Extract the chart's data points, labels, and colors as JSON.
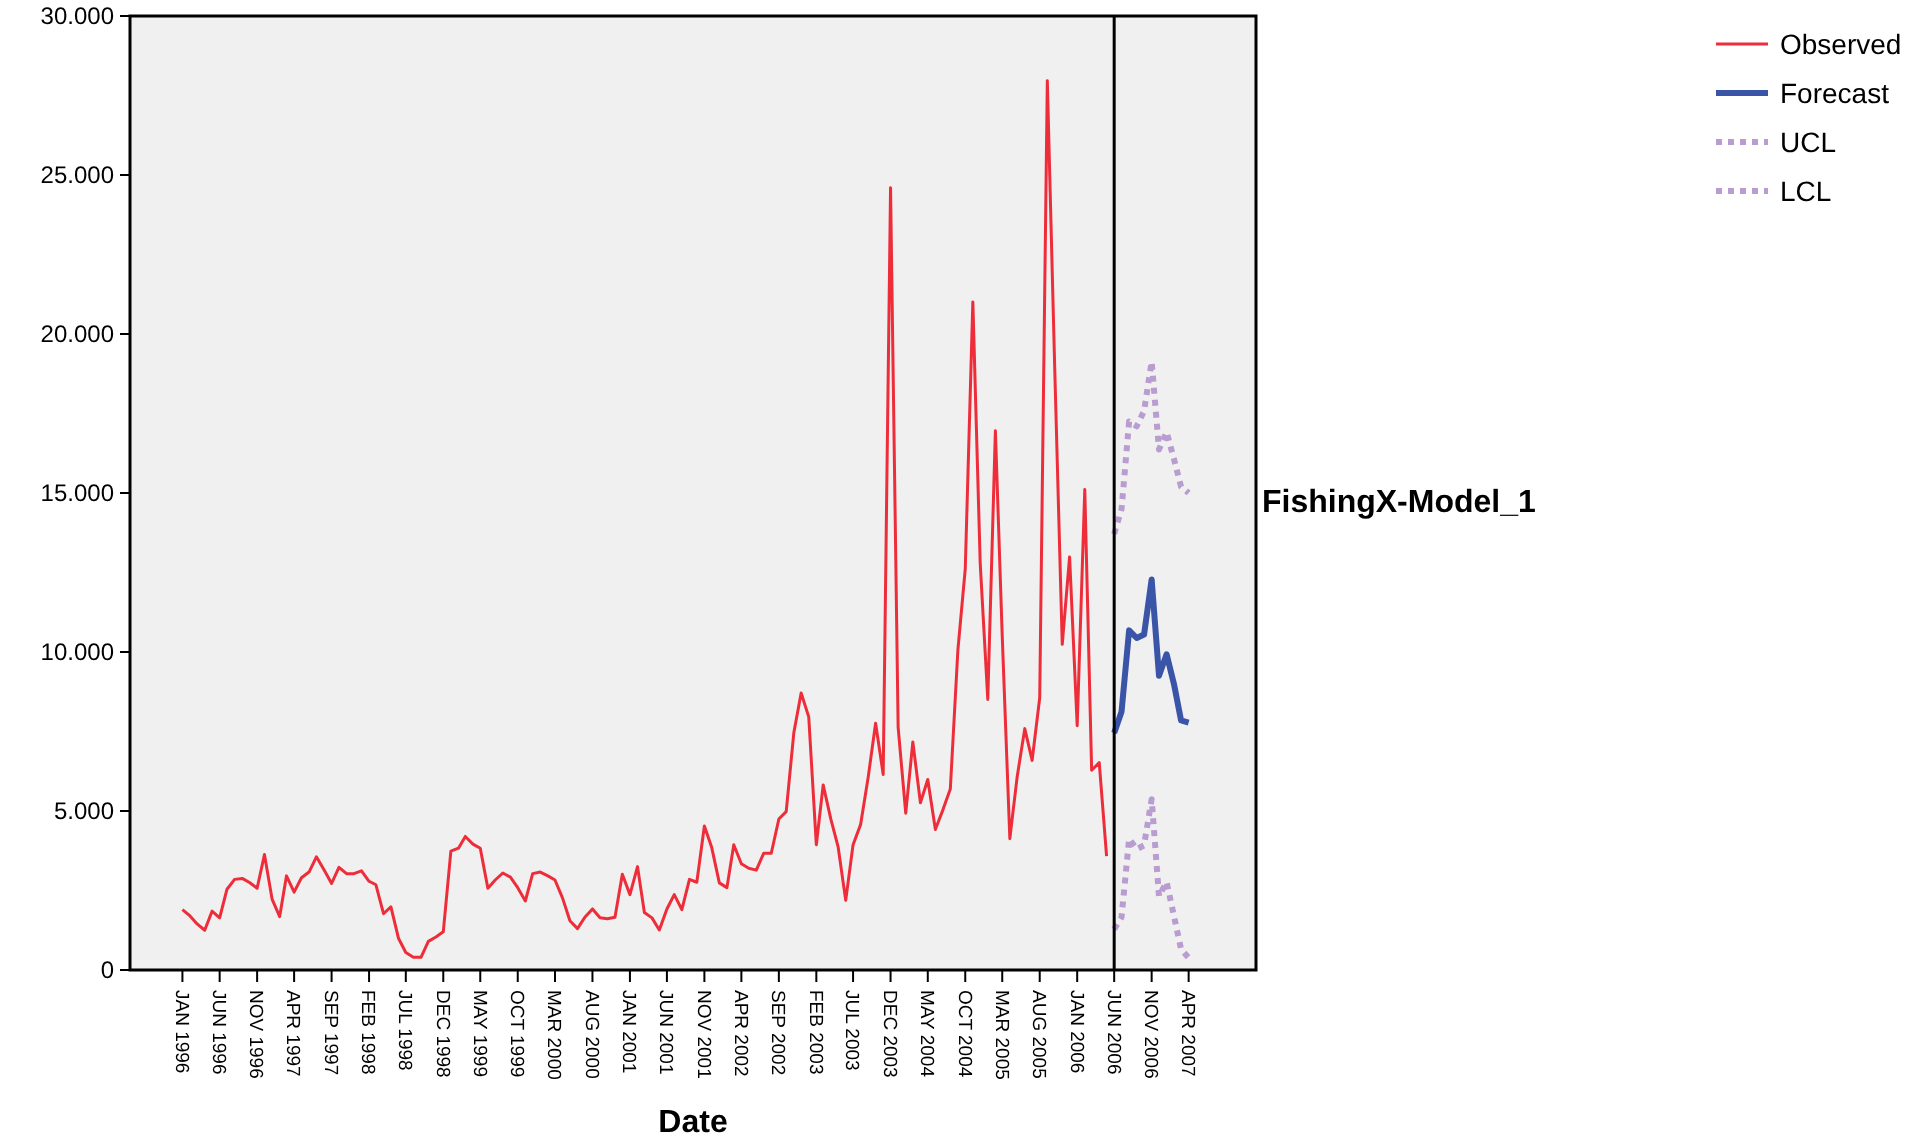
{
  "chart_data": {
    "type": "line",
    "xlabel": "Date",
    "annotations": [
      "FishingX-Model_1"
    ],
    "xlim": [
      "1995-06",
      "2008-01"
    ],
    "xticks": [
      {
        "value": "1996-01",
        "label": "JAN 1996"
      },
      {
        "value": "1996-06",
        "label": "JUN 1996"
      },
      {
        "value": "1996-11",
        "label": "NOV 1996"
      },
      {
        "value": "1997-04",
        "label": "APR 1997"
      },
      {
        "value": "1997-09",
        "label": "SEP 1997"
      },
      {
        "value": "1998-02",
        "label": "FEB 1998"
      },
      {
        "value": "1998-07",
        "label": "JUL 1998"
      },
      {
        "value": "1998-12",
        "label": "DEC 1998"
      },
      {
        "value": "1999-05",
        "label": "MAY 1999"
      },
      {
        "value": "1999-10",
        "label": "OCT 1999"
      },
      {
        "value": "2000-03",
        "label": "MAR 2000"
      },
      {
        "value": "2000-08",
        "label": "AUG 2000"
      },
      {
        "value": "2001-01",
        "label": "JAN 2001"
      },
      {
        "value": "2001-06",
        "label": "JUN 2001"
      },
      {
        "value": "2001-11",
        "label": "NOV 2001"
      },
      {
        "value": "2002-04",
        "label": "APR 2002"
      },
      {
        "value": "2002-09",
        "label": "SEP 2002"
      },
      {
        "value": "2003-02",
        "label": "FEB 2003"
      },
      {
        "value": "2003-07",
        "label": "JUL 2003"
      },
      {
        "value": "2003-12",
        "label": "DEC 2003"
      },
      {
        "value": "2004-05",
        "label": "MAY 2004"
      },
      {
        "value": "2004-10",
        "label": "OCT 2004"
      },
      {
        "value": "2005-03",
        "label": "MAR 2005"
      },
      {
        "value": "2005-08",
        "label": "AUG 2005"
      },
      {
        "value": "2006-01",
        "label": "JAN 2006"
      },
      {
        "value": "2006-06",
        "label": "JUN 2006"
      },
      {
        "value": "2006-11",
        "label": "NOV 2006"
      },
      {
        "value": "2007-04",
        "label": "APR 2007"
      }
    ],
    "ylim": [
      0,
      30000
    ],
    "yticks": [
      0,
      {
        "value": 5000,
        "label": "5.000"
      },
      {
        "value": 10000,
        "label": "10.000"
      },
      {
        "value": 15000,
        "label": "15.000"
      },
      {
        "value": 20000,
        "label": "20.000"
      },
      {
        "value": 25000,
        "label": "25.000"
      },
      {
        "value": 30000,
        "label": "30.000"
      }
    ],
    "grid": false,
    "legend": "top right",
    "marker": "none",
    "ref_lines": [
      {
        "axis": "x",
        "value": "2006-06",
        "color": "#000000"
      }
    ],
    "series": [
      {
        "name": "Observed",
        "color": "#ee2d3a",
        "line_style": "solid",
        "x": [
          "1996-01",
          "1996-02",
          "1996-03",
          "1996-04",
          "1996-05",
          "1996-06",
          "1996-07",
          "1996-08",
          "1996-09",
          "1996-10",
          "1996-11",
          "1996-12",
          "1997-01",
          "1997-02",
          "1997-03",
          "1997-04",
          "1997-05",
          "1997-06",
          "1997-07",
          "1997-08",
          "1997-09",
          "1997-10",
          "1997-11",
          "1997-12",
          "1998-01",
          "1998-02",
          "1998-03",
          "1998-04",
          "1998-05",
          "1998-06",
          "1998-07",
          "1998-08",
          "1998-09",
          "1998-10",
          "1998-11",
          "1998-12",
          "1999-01",
          "1999-02",
          "1999-03",
          "1999-04",
          "1999-05",
          "1999-06",
          "1999-07",
          "1999-08",
          "1999-09",
          "1999-10",
          "1999-11",
          "1999-12",
          "2000-01",
          "2000-02",
          "2000-03",
          "2000-04",
          "2000-05",
          "2000-06",
          "2000-07",
          "2000-08",
          "2000-09",
          "2000-10",
          "2000-11",
          "2000-12",
          "2001-01",
          "2001-02",
          "2001-03",
          "2001-04",
          "2001-05",
          "2001-06",
          "2001-07",
          "2001-08",
          "2001-09",
          "2001-10",
          "2001-11",
          "2001-12",
          "2002-01",
          "2002-02",
          "2002-03",
          "2002-04",
          "2002-05",
          "2002-06",
          "2002-07",
          "2002-08",
          "2002-09",
          "2002-10",
          "2002-11",
          "2002-12",
          "2003-01",
          "2003-02",
          "2003-03",
          "2003-04",
          "2003-05",
          "2003-06",
          "2003-07",
          "2003-08",
          "2003-09",
          "2003-10",
          "2003-11",
          "2003-12",
          "2004-01",
          "2004-02",
          "2004-03",
          "2004-04",
          "2004-05",
          "2004-06",
          "2004-07",
          "2004-08",
          "2004-09",
          "2004-10",
          "2004-11",
          "2004-12",
          "2005-01",
          "2005-02",
          "2005-03",
          "2005-04",
          "2005-05",
          "2005-06",
          "2005-07",
          "2005-08",
          "2005-09",
          "2005-10",
          "2005-11",
          "2005-12",
          "2006-01",
          "2006-02",
          "2006-03",
          "2006-04",
          "2006-05"
        ],
        "values": [
          1900,
          1700,
          1450,
          1250,
          1850,
          1640,
          2540,
          2850,
          2880,
          2750,
          2570,
          3630,
          2230,
          1680,
          2960,
          2450,
          2900,
          3080,
          3560,
          3150,
          2720,
          3230,
          3030,
          3030,
          3120,
          2790,
          2680,
          1770,
          1990,
          1000,
          550,
          400,
          400,
          900,
          1040,
          1200,
          3740,
          3830,
          4200,
          3960,
          3830,
          2570,
          2830,
          3050,
          2920,
          2590,
          2170,
          3030,
          3080,
          2960,
          2830,
          2260,
          1550,
          1300,
          1660,
          1920,
          1640,
          1610,
          1660,
          3010,
          2370,
          3250,
          1810,
          1640,
          1260,
          1920,
          2370,
          1900,
          2850,
          2760,
          4530,
          3850,
          2740,
          2590,
          3940,
          3340,
          3200,
          3140,
          3670,
          3670,
          4750,
          4980,
          7450,
          8710,
          7960,
          3940,
          5820,
          4750,
          3870,
          2190,
          3940,
          4580,
          6080,
          7760,
          6150,
          24600,
          7630,
          4930,
          7170,
          5260,
          5990,
          4420,
          5020,
          5690,
          10070,
          12610,
          21010,
          12800,
          8510,
          16960,
          10500,
          4130,
          6080,
          7590,
          6590,
          8560,
          27960,
          19000,
          10240,
          12990,
          7680,
          15110,
          6280,
          6520,
          3580
        ]
      },
      {
        "name": "Forecast",
        "color": "#3a55a8",
        "line_style": "solid",
        "x": [
          "2006-06",
          "2006-07",
          "2006-08",
          "2006-09",
          "2006-10",
          "2006-11",
          "2006-12",
          "2007-01",
          "2007-02",
          "2007-03",
          "2007-04"
        ],
        "values": [
          7450,
          8120,
          10680,
          10440,
          10550,
          12280,
          9250,
          9930,
          8960,
          7850,
          7780
        ]
      },
      {
        "name": "UCL",
        "color": "#b99cd0",
        "line_style": "dotted",
        "x": [
          "2006-06",
          "2006-07",
          "2006-08",
          "2006-09",
          "2006-10",
          "2006-11",
          "2006-12",
          "2007-01",
          "2007-02",
          "2007-03",
          "2007-04"
        ],
        "values": [
          13710,
          14490,
          17250,
          17100,
          17580,
          19130,
          16370,
          16920,
          16040,
          15200,
          15000
        ]
      },
      {
        "name": "LCL",
        "color": "#b99cd0",
        "line_style": "dotted",
        "x": [
          "2006-06",
          "2006-07",
          "2006-08",
          "2006-09",
          "2006-10",
          "2006-11",
          "2006-12",
          "2007-01",
          "2007-02",
          "2007-03",
          "2007-04"
        ],
        "values": [
          1280,
          1660,
          4130,
          3800,
          3920,
          5370,
          2320,
          2770,
          1660,
          660,
          380
        ]
      }
    ]
  }
}
